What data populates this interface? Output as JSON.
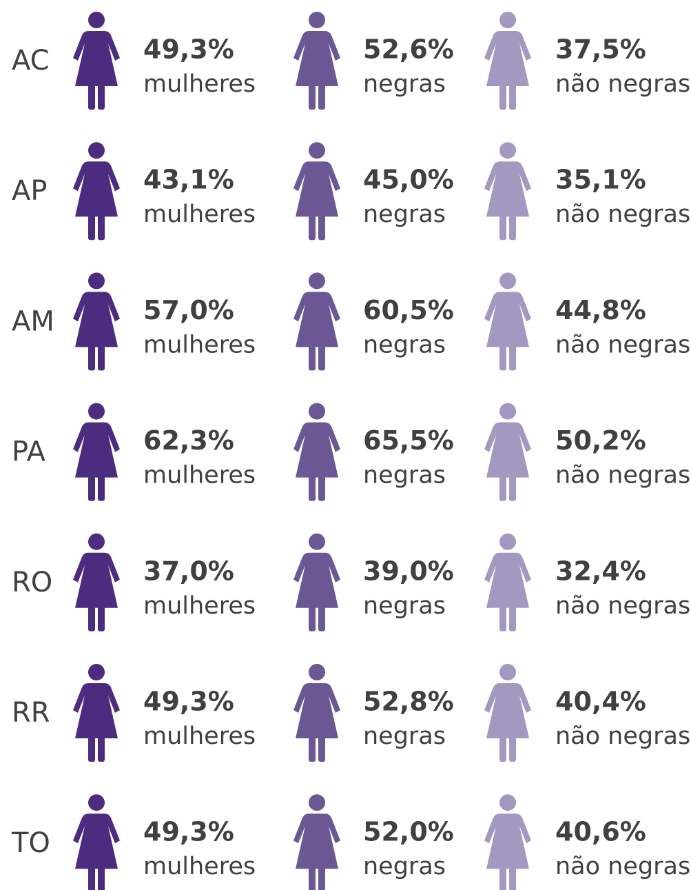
{
  "rows": [
    {
      "state": "AC",
      "cells": [
        {
          "value": "49,3%",
          "label": "mulheres"
        },
        {
          "value": "52,6%",
          "label": "negras"
        },
        {
          "value": "37,5%",
          "label": "não negras"
        }
      ]
    },
    {
      "state": "AP",
      "cells": [
        {
          "value": "43,1%",
          "label": "mulheres"
        },
        {
          "value": "45,0%",
          "label": "negras"
        },
        {
          "value": "35,1%",
          "label": "não negras"
        }
      ]
    },
    {
      "state": "AM",
      "cells": [
        {
          "value": "57,0%",
          "label": "mulheres"
        },
        {
          "value": "60,5%",
          "label": "negras"
        },
        {
          "value": "44,8%",
          "label": "não negras"
        }
      ]
    },
    {
      "state": "PA",
      "cells": [
        {
          "value": "62,3%",
          "label": "mulheres"
        },
        {
          "value": "65,5%",
          "label": "negras"
        },
        {
          "value": "50,2%",
          "label": "não negras"
        }
      ]
    },
    {
      "state": "RO",
      "cells": [
        {
          "value": "37,0%",
          "label": "mulheres"
        },
        {
          "value": "39,0%",
          "label": "negras"
        },
        {
          "value": "32,4%",
          "label": "não negras"
        }
      ]
    },
    {
      "state": "RR",
      "cells": [
        {
          "value": "49,3%",
          "label": "mulheres"
        },
        {
          "value": "52,8%",
          "label": "negras"
        },
        {
          "value": "40,4%",
          "label": "não negras"
        }
      ]
    },
    {
      "state": "TO",
      "cells": [
        {
          "value": "49,3%",
          "label": "mulheres"
        },
        {
          "value": "52,0%",
          "label": "negras"
        },
        {
          "value": "40,6%",
          "label": "não negras"
        }
      ]
    }
  ]
}
